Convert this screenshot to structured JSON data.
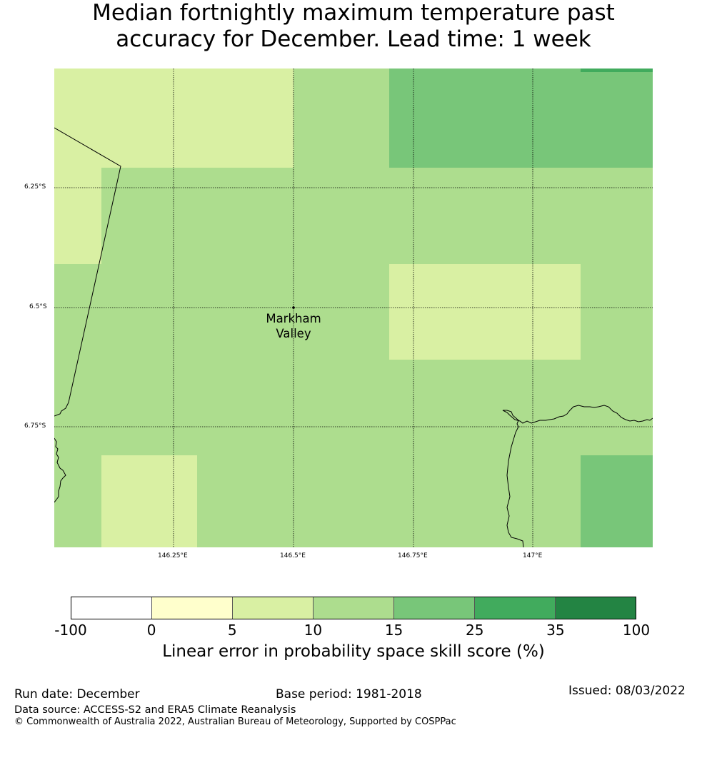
{
  "title": {
    "line1": "Median fortnightly maximum temperature past",
    "line2": "accuracy for December. Lead time: 1 week"
  },
  "map": {
    "longitude_labels": [
      "146.25°E",
      "146.5°E",
      "146.75°E",
      "147°E"
    ],
    "latitude_labels": [
      "6.25°S",
      "6.5°S",
      "6.75°S"
    ],
    "place_label": [
      "Markham",
      "Valley"
    ],
    "place_marker_icon": "point-marker-icon"
  },
  "colorbar": {
    "ticks": [
      "-100",
      "0",
      "5",
      "10",
      "15",
      "25",
      "35",
      "100"
    ],
    "colors": [
      "#ffffff",
      "#ffffcc",
      "#d9f0a3",
      "#addd8e",
      "#78c679",
      "#41ab5d",
      "#238443"
    ],
    "label": "Linear error in probability space skill score (%)"
  },
  "footer": {
    "run_date": "Run date: December",
    "base_period": "Base period: 1981-2018",
    "issued": "Issued: 08/03/2022",
    "data_source": "Data source: ACCESS-S2 and ERA5 Climate Reanalysis",
    "copyright": "© Commonwealth of Australia 2022, Australian Bureau of Meteorology, Supported by COSPPac"
  }
}
